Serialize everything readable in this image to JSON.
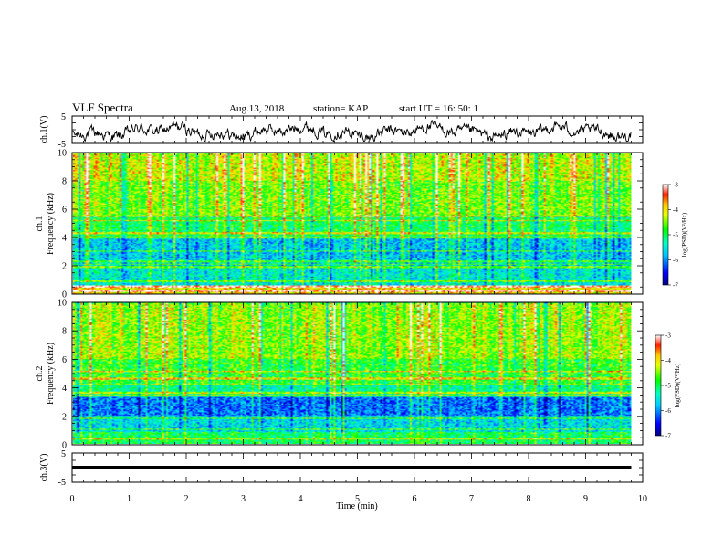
{
  "chart_data": [
    {
      "type": "line",
      "panel": "ch1-waveform",
      "header": {
        "title": "VLF Spectra",
        "date": "Aug.13, 2018",
        "station": "station= KAP",
        "start": "start  UT =   16: 50: 1"
      },
      "ylabel": "ch.1(V)",
      "ylim": [
        -5,
        5
      ],
      "yticks": [
        "5",
        "-5"
      ],
      "xlim": [
        0,
        10
      ],
      "x_extent_min": 9.8,
      "signal": "noisy waveform fluctuating roughly between -4 and 3 V"
    },
    {
      "type": "heatmap",
      "panel": "ch1-spectrogram",
      "ylabel_line1": "ch.1",
      "ylabel_line2": "Frequency (kHz)",
      "ylim": [
        0,
        10
      ],
      "yticks": [
        "0",
        "2",
        "4",
        "6",
        "8",
        "10"
      ],
      "xlim": [
        0,
        10
      ],
      "x_extent_min": 9.8,
      "colorbar": {
        "label": "log(PSD)(V²/Hz)",
        "range": [
          -7,
          -3
        ],
        "ticks": [
          "-3",
          "-4",
          "-5",
          "-6",
          "-7"
        ]
      },
      "dominant_log_psd_by_freq_khz": {
        "0-0.6": -4.0,
        "0.6-2": -5.5,
        "2-4": -5.7,
        "4-5.5": -5.0,
        "5.5-8": -4.5,
        "8-10": -4.2
      },
      "narrowband_lines_khz": [
        0.2,
        0.5,
        0.9,
        1.9,
        2.1,
        2.3,
        3.0,
        4.0,
        4.3,
        5.2,
        5.5
      ]
    },
    {
      "type": "heatmap",
      "panel": "ch2-spectrogram",
      "ylabel_line1": "ch.2",
      "ylabel_line2": "Frequency (kHz)",
      "ylim": [
        0,
        10
      ],
      "yticks": [
        "0",
        "2",
        "4",
        "6",
        "8",
        "10"
      ],
      "xlim": [
        0,
        10
      ],
      "x_extent_min": 9.8,
      "colorbar": {
        "label": "log(PSD)(V²/Hz)",
        "range": [
          -7,
          -3
        ],
        "ticks": [
          "-3",
          "-4",
          "-5",
          "-6",
          "-7"
        ]
      },
      "dominant_log_psd_by_freq_khz": {
        "0-0.8": -5.0,
        "0.8-2": -5.6,
        "2-3.3": -6.1,
        "3.3-4.2": -5.2,
        "4.2-6": -4.8,
        "6-10": -4.4
      },
      "narrowband_lines_khz": [
        0.3,
        1.0,
        1.8,
        3.4,
        3.6,
        4.2,
        4.6,
        5.1
      ]
    },
    {
      "type": "line",
      "panel": "ch3-level",
      "ylabel": "ch.3(V)",
      "ylim": [
        -5,
        5
      ],
      "yticks": [
        "5",
        "-5"
      ],
      "xlim": [
        0,
        10
      ],
      "x_extent_min": 9.8,
      "constant_value": 0,
      "xlabel": "Time (min)",
      "xticks": [
        "0",
        "1",
        "2",
        "3",
        "4",
        "5",
        "6",
        "7",
        "8",
        "9",
        "10"
      ]
    }
  ]
}
